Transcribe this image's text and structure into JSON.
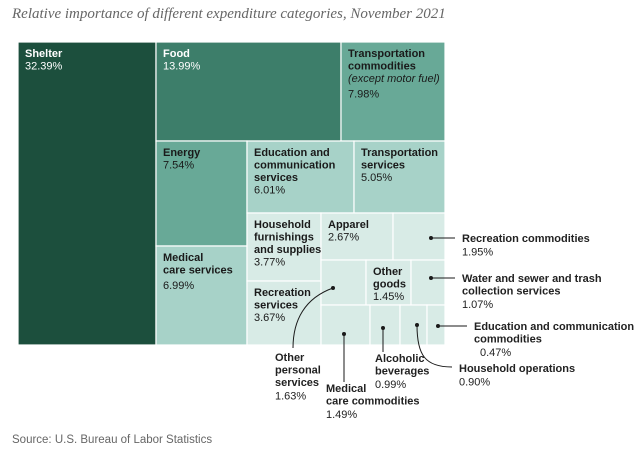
{
  "chart_data": {
    "type": "treemap",
    "title": "Relative importance of different expenditure categories, November 2021",
    "source": "Source: U.S. Bureau of Labor Statistics",
    "unit": "%",
    "categories": [
      {
        "key": "shelter",
        "name": "Shelter",
        "value": 32.39,
        "value_label": "32.39%",
        "color": "#1c4f3d",
        "label_placement": "inside"
      },
      {
        "key": "food",
        "name": "Food",
        "value": 13.99,
        "value_label": "13.99%",
        "color": "#3d7e6a",
        "label_placement": "inside"
      },
      {
        "key": "transport_commodities",
        "name": "Transportation commodities",
        "note": "(except motor fuel)",
        "value": 7.98,
        "value_label": "7.98%",
        "color": "#68a997",
        "label_placement": "inside"
      },
      {
        "key": "energy",
        "name": "Energy",
        "value": 7.54,
        "value_label": "7.54%",
        "color": "#68a997",
        "label_placement": "inside"
      },
      {
        "key": "edu_comm_services",
        "name": "Education and communication services",
        "value": 6.01,
        "value_label": "6.01%",
        "color": "#a7d2c8",
        "label_placement": "inside"
      },
      {
        "key": "transport_services",
        "name": "Transportation services",
        "value": 5.05,
        "value_label": "5.05%",
        "color": "#a7d2c8",
        "label_placement": "inside"
      },
      {
        "key": "medical_services",
        "name": "Medical care services",
        "value": 6.99,
        "value_label": "6.99%",
        "color": "#a7d2c8",
        "label_placement": "inside"
      },
      {
        "key": "household_furnishings",
        "name": "Household furnishings and supplies",
        "value": 3.77,
        "value_label": "3.77%",
        "color": "#d8ebe6",
        "label_placement": "inside"
      },
      {
        "key": "apparel",
        "name": "Apparel",
        "value": 2.67,
        "value_label": "2.67%",
        "color": "#d8ebe6",
        "label_placement": "inside"
      },
      {
        "key": "recreation_commodities",
        "name": "Recreation commodities",
        "value": 1.95,
        "value_label": "1.95%",
        "color": "#d8ebe6",
        "label_placement": "outside"
      },
      {
        "key": "recreation_services",
        "name": "Recreation services",
        "value": 3.67,
        "value_label": "3.67%",
        "color": "#d8ebe6",
        "label_placement": "inside"
      },
      {
        "key": "other_personal_services",
        "name": "Other personal services",
        "value": 1.63,
        "value_label": "1.63%",
        "color": "#d8ebe6",
        "label_placement": "outside"
      },
      {
        "key": "other_goods",
        "name": "Other goods",
        "value": 1.45,
        "value_label": "1.45%",
        "color": "#d8ebe6",
        "label_placement": "inside"
      },
      {
        "key": "water_sewer_trash",
        "name": "Water and sewer and trash collection services",
        "value": 1.07,
        "value_label": "1.07%",
        "color": "#d8ebe6",
        "label_placement": "outside"
      },
      {
        "key": "medical_commodities",
        "name": "Medical care commodities",
        "value": 1.49,
        "value_label": "1.49%",
        "color": "#d8ebe6",
        "label_placement": "outside"
      },
      {
        "key": "alcoholic_beverages",
        "name": "Alcoholic beverages",
        "value": 0.99,
        "value_label": "0.99%",
        "color": "#d8ebe6",
        "label_placement": "outside"
      },
      {
        "key": "household_operations",
        "name": "Household operations",
        "value": 0.9,
        "value_label": "0.90%",
        "color": "#d8ebe6",
        "label_placement": "outside"
      },
      {
        "key": "edu_comm_commodities",
        "name": "Education and communication commodities",
        "value": 0.47,
        "value_label": "0.47%",
        "color": "#d8ebe6",
        "label_placement": "outside"
      }
    ]
  }
}
